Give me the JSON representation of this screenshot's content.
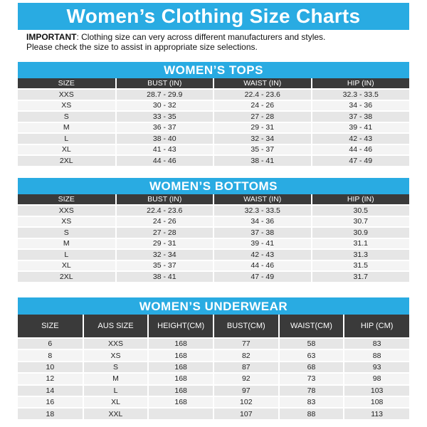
{
  "title": "Women’s Clothing Size Charts",
  "notice": {
    "bold": "IMPORTANT",
    "line1": ": Clothing size can very across different manufacturers and styles.",
    "line2": "Please check the size to assist in appropriate size selections."
  },
  "tops": {
    "title": "WOMEN’S TOPS",
    "headers": [
      "SIZE",
      "BUST (IN)",
      "WAIST (IN)",
      "HIP (IN)"
    ],
    "rows": [
      [
        "XXS",
        "28.7 - 29.9",
        "22.4 - 23.6",
        "32.3 - 33.5"
      ],
      [
        "XS",
        "30 - 32",
        "24 - 26",
        "34 - 36"
      ],
      [
        "S",
        "33 - 35",
        "27 - 28",
        "37 - 38"
      ],
      [
        "M",
        "36 - 37",
        "29 - 31",
        "39 - 41"
      ],
      [
        "L",
        "38 - 40",
        "32 - 34",
        "42 - 43"
      ],
      [
        "XL",
        "41 - 43",
        "35 - 37",
        "44 - 46"
      ],
      [
        "2XL",
        "44 - 46",
        "38 - 41",
        "47 - 49"
      ]
    ]
  },
  "bottoms": {
    "title": "WOMEN’S BOTTOMS",
    "headers": [
      "SIZE",
      "BUST (IN)",
      "WAIST (IN)",
      "HIP (IN)"
    ],
    "rows": [
      [
        "XXS",
        "22.4 - 23.6",
        "32.3 - 33.5",
        "30.5"
      ],
      [
        "XS",
        "24 - 26",
        "34 - 36",
        "30.7"
      ],
      [
        "S",
        "27 - 28",
        "37 - 38",
        "30.9"
      ],
      [
        "M",
        "29 - 31",
        "39 - 41",
        "31.1"
      ],
      [
        "L",
        "32 - 34",
        "42 - 43",
        "31.3"
      ],
      [
        "XL",
        "35 - 37",
        "44 - 46",
        "31.5"
      ],
      [
        "2XL",
        "38 - 41",
        "47 - 49",
        "31.7"
      ]
    ]
  },
  "underwear": {
    "title": "WOMEN’S UNDERWEAR",
    "headers": [
      "SIZE",
      "AUS SIZE",
      "HEIGHT(CM)",
      "BUST(CM)",
      "WAIST(CM)",
      "HIP (CM)"
    ],
    "rows": [
      [
        "6",
        "XXS",
        "168",
        "77",
        "58",
        "83"
      ],
      [
        "8",
        "XS",
        "168",
        "82",
        "63",
        "88"
      ],
      [
        "10",
        "S",
        "168",
        "87",
        "68",
        "93"
      ],
      [
        "12",
        "M",
        "168",
        "92",
        "73",
        "98"
      ],
      [
        "14",
        "L",
        "168",
        "97",
        "78",
        "103"
      ],
      [
        "16",
        "XL",
        "168",
        "102",
        "83",
        "108"
      ],
      [
        "18",
        "XXL",
        "",
        "107",
        "88",
        "113"
      ]
    ]
  }
}
